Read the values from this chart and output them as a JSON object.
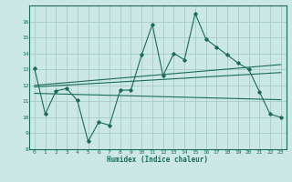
{
  "xlabel": "Humidex (Indice chaleur)",
  "ylabel": "",
  "xlim": [
    -0.5,
    23.5
  ],
  "ylim": [
    8,
    17
  ],
  "yticks": [
    8,
    9,
    10,
    11,
    12,
    13,
    14,
    15,
    16
  ],
  "xticks": [
    0,
    1,
    2,
    3,
    4,
    5,
    6,
    7,
    8,
    9,
    10,
    11,
    12,
    13,
    14,
    15,
    16,
    17,
    18,
    19,
    20,
    21,
    22,
    23
  ],
  "bg_color": "#cce8e5",
  "grid_color": "#aacfcc",
  "line_color": "#1a6b5a",
  "main_x": [
    0,
    1,
    2,
    3,
    4,
    5,
    6,
    7,
    8,
    9,
    10,
    11,
    12,
    13,
    14,
    15,
    16,
    17,
    18,
    19,
    20,
    21,
    22,
    23
  ],
  "main_y": [
    13.05,
    10.2,
    11.65,
    11.8,
    11.05,
    8.5,
    9.7,
    9.5,
    11.7,
    11.7,
    13.9,
    15.8,
    12.6,
    14.0,
    13.6,
    16.5,
    14.9,
    14.4,
    13.9,
    13.4,
    13.0,
    11.6,
    10.2,
    10.0
  ],
  "smooth_lines": [
    {
      "x": [
        0,
        23
      ],
      "y": [
        12.0,
        13.3
      ]
    },
    {
      "x": [
        0,
        23
      ],
      "y": [
        11.9,
        12.8
      ]
    },
    {
      "x": [
        0,
        23
      ],
      "y": [
        11.5,
        11.1
      ]
    }
  ]
}
